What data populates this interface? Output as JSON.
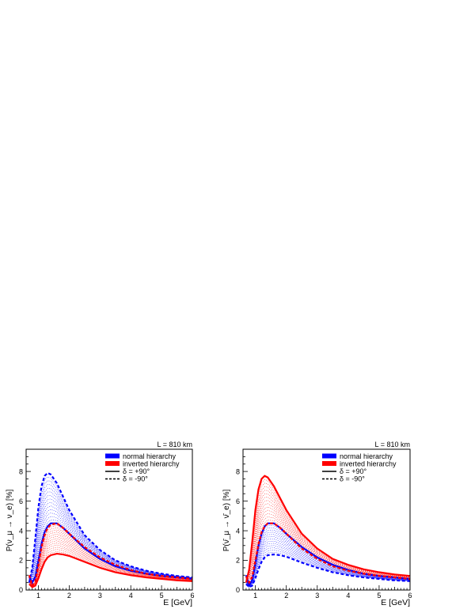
{
  "chart_data": [
    {
      "type": "line",
      "title": "L = 810 km",
      "xlabel": "E [GeV]",
      "ylabel": "P(ν_μ → ν_e) [%]",
      "xlim": [
        0.6,
        6
      ],
      "ylim": [
        0,
        9.5
      ],
      "x_ticks": [
        1,
        2,
        3,
        4,
        5,
        6
      ],
      "y_ticks": [
        0,
        2,
        4,
        6,
        8
      ],
      "grid": false,
      "legend_position": "top-right",
      "legend": [
        "normal hierarchy",
        "inverted hierarchy",
        "δ = +90°",
        "δ = -90°"
      ],
      "x": [
        0.7,
        0.8,
        0.9,
        1.0,
        1.1,
        1.2,
        1.3,
        1.4,
        1.6,
        1.8,
        2.0,
        2.5,
        3.0,
        3.5,
        4.0,
        4.5,
        5.0,
        5.5,
        6.0
      ],
      "series": [
        {
          "name": "normal hierarchy",
          "delta": "δ = +90°",
          "color": "#0000ff",
          "values": [
            0.9,
            0.5,
            0.9,
            2.0,
            3.1,
            3.9,
            4.3,
            4.5,
            4.5,
            4.2,
            3.8,
            2.8,
            2.1,
            1.6,
            1.3,
            1.1,
            0.95,
            0.85,
            0.75
          ]
        },
        {
          "name": "normal hierarchy",
          "delta": "δ = -90°",
          "color": "#0000ff",
          "values": [
            0.5,
            1.5,
            3.5,
            5.6,
            7.0,
            7.7,
            7.9,
            7.8,
            7.2,
            6.3,
            5.4,
            3.7,
            2.7,
            2.0,
            1.6,
            1.3,
            1.1,
            0.95,
            0.85
          ]
        },
        {
          "name": "inverted hierarchy",
          "delta": "δ = +90°",
          "color": "#ff0000",
          "values": [
            0.4,
            0.2,
            0.3,
            0.8,
            1.4,
            1.9,
            2.2,
            2.35,
            2.45,
            2.4,
            2.3,
            1.9,
            1.5,
            1.2,
            1.0,
            0.85,
            0.75,
            0.65,
            0.6
          ]
        },
        {
          "name": "inverted hierarchy",
          "delta": "δ = -90°",
          "color": "#ff0000",
          "values": [
            1.0,
            0.3,
            0.6,
            1.7,
            2.9,
            3.7,
            4.2,
            4.4,
            4.5,
            4.2,
            3.8,
            2.9,
            2.2,
            1.7,
            1.35,
            1.1,
            0.95,
            0.85,
            0.75
          ]
        }
      ]
    },
    {
      "type": "line",
      "title": "L = 810 km",
      "xlabel": "E [GeV]",
      "ylabel": "P(ν̄_μ → ν̄_e) [%]",
      "xlim": [
        0.6,
        6
      ],
      "ylim": [
        0,
        9.5
      ],
      "x_ticks": [
        1,
        2,
        3,
        4,
        5,
        6
      ],
      "y_ticks": [
        0,
        2,
        4,
        6,
        8
      ],
      "grid": false,
      "legend_position": "top-right",
      "legend": [
        "normal hierarchy",
        "inverted hierarchy",
        "δ = +90°",
        "δ = -90°"
      ],
      "x": [
        0.7,
        0.8,
        0.9,
        1.0,
        1.1,
        1.2,
        1.3,
        1.4,
        1.6,
        1.8,
        2.0,
        2.5,
        3.0,
        3.5,
        4.0,
        4.5,
        5.0,
        5.5,
        6.0
      ],
      "series": [
        {
          "name": "normal hierarchy",
          "delta": "δ = +90°",
          "color": "#0000ff",
          "values": [
            1.0,
            0.3,
            0.7,
            1.8,
            3.0,
            3.8,
            4.3,
            4.5,
            4.5,
            4.2,
            3.8,
            2.9,
            2.2,
            1.7,
            1.35,
            1.1,
            0.95,
            0.85,
            0.75
          ]
        },
        {
          "name": "normal hierarchy",
          "delta": "δ = -90°",
          "color": "#0000ff",
          "values": [
            0.4,
            0.2,
            0.3,
            0.8,
            1.4,
            1.9,
            2.2,
            2.35,
            2.4,
            2.35,
            2.25,
            1.85,
            1.5,
            1.2,
            1.0,
            0.85,
            0.75,
            0.65,
            0.6
          ]
        },
        {
          "name": "inverted hierarchy",
          "delta": "δ = +90°",
          "color": "#ff0000",
          "values": [
            0.5,
            1.4,
            3.3,
            5.4,
            6.8,
            7.5,
            7.7,
            7.6,
            7.0,
            6.2,
            5.4,
            3.8,
            2.8,
            2.1,
            1.7,
            1.4,
            1.2,
            1.05,
            0.95
          ]
        },
        {
          "name": "inverted hierarchy",
          "delta": "δ = -90°",
          "color": "#ff0000",
          "values": [
            0.9,
            0.5,
            0.9,
            2.0,
            3.1,
            3.9,
            4.3,
            4.5,
            4.5,
            4.2,
            3.8,
            2.8,
            2.1,
            1.6,
            1.3,
            1.1,
            0.95,
            0.85,
            0.75
          ]
        }
      ]
    }
  ]
}
